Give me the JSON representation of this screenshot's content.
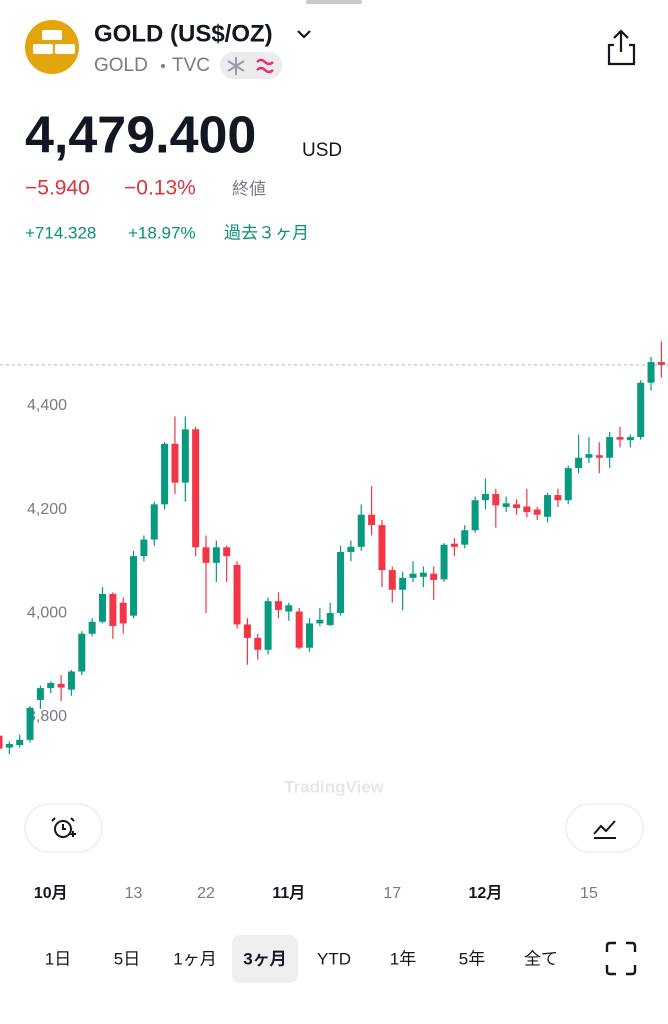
{
  "header": {
    "title": "GOLD (US$/OZ)",
    "symbol": "GOLD",
    "exchange": "TVC",
    "price": "4,479.400",
    "currency": "USD",
    "change": "−5.940",
    "change_pct": "−0.13%",
    "status": "終値",
    "period_change": "+714.328",
    "period_change_pct": "+18.97%",
    "period_label": "過去３ヶ月"
  },
  "chart_data": {
    "type": "candlestick",
    "categories": [
      null,
      null,
      null,
      null,
      null,
      "10月",
      null,
      null,
      null,
      null,
      null,
      null,
      null,
      "13",
      null,
      null,
      null,
      null,
      null,
      null,
      "22",
      null,
      null,
      null,
      null,
      null,
      null,
      null,
      "11月",
      null,
      null,
      null,
      null,
      null,
      null,
      null,
      null,
      null,
      "17",
      null,
      null,
      null,
      null,
      null,
      null,
      null,
      null,
      "12月",
      null,
      null,
      null,
      null,
      null,
      null,
      null,
      null,
      null,
      "15",
      null,
      null,
      null,
      null,
      null,
      null,
      null
    ],
    "open": [
      3763,
      3740,
      3745,
      3755,
      3832,
      3855,
      3863,
      3852,
      3887,
      3960,
      3983,
      4037,
      4020,
      3995,
      4110,
      4142,
      4210,
      4327,
      4252,
      4355,
      4127,
      4097,
      4127,
      4093,
      3978,
      3952,
      3929,
      4023,
      4003,
      4003,
      3933,
      3980,
      3977,
      4000,
      4118,
      4128,
      4190,
      4170,
      4083,
      4045,
      4068,
      4070,
      4076,
      4065,
      4134,
      4132,
      4160,
      4218,
      4230,
      4205,
      4210,
      4206,
      4200,
      4186,
      4228,
      4218,
      4280,
      4300,
      4305,
      4300,
      4340,
      4334,
      4340,
      4445,
      4485
    ],
    "high": [
      3768,
      3752,
      3765,
      3820,
      3860,
      3868,
      3880,
      3890,
      3965,
      3990,
      4050,
      4040,
      4030,
      4120,
      4150,
      4215,
      4330,
      4380,
      4380,
      4360,
      4150,
      4140,
      4130,
      4100,
      3990,
      3960,
      4030,
      4040,
      4020,
      4010,
      3990,
      4010,
      4020,
      4130,
      4140,
      4210,
      4245,
      4180,
      4090,
      4080,
      4100,
      4090,
      4090,
      4135,
      4145,
      4170,
      4225,
      4260,
      4240,
      4225,
      4220,
      4240,
      4205,
      4232,
      4240,
      4285,
      4345,
      4340,
      4330,
      4350,
      4360,
      4345,
      4450,
      4495,
      4525
    ],
    "low": [
      3730,
      3727,
      3740,
      3750,
      3815,
      3845,
      3830,
      3840,
      3880,
      3955,
      3980,
      3950,
      3960,
      3990,
      4100,
      4130,
      4200,
      4230,
      4215,
      4110,
      4000,
      4060,
      4060,
      3970,
      3900,
      3910,
      3920,
      3990,
      3985,
      3930,
      3925,
      3975,
      3975,
      3995,
      4100,
      4120,
      4150,
      4050,
      4020,
      4005,
      4060,
      4050,
      4025,
      4060,
      4110,
      4125,
      4155,
      4200,
      4165,
      4195,
      4190,
      4185,
      4180,
      4175,
      4205,
      4210,
      4270,
      4290,
      4270,
      4280,
      4320,
      4320,
      4335,
      4430,
      4455
    ],
    "close": [
      3738,
      3747,
      3755,
      3817,
      3855,
      3865,
      3856,
      3887,
      3960,
      3983,
      4037,
      3975,
      3980,
      4110,
      4142,
      4210,
      4327,
      4252,
      4355,
      4127,
      4097,
      4127,
      4110,
      3978,
      3952,
      3929,
      4023,
      4006,
      4015,
      3933,
      3980,
      3987,
      4000,
      4118,
      4128,
      4190,
      4170,
      4083,
      4045,
      4068,
      4076,
      4078,
      4064,
      4132,
      4128,
      4160,
      4218,
      4230,
      4208,
      4212,
      4203,
      4195,
      4190,
      4228,
      4218,
      4280,
      4300,
      4307,
      4300,
      4340,
      4335,
      4340,
      4445,
      4485,
      4479.4
    ],
    "up_color": "#089981",
    "down_color": "#f23645",
    "ylim": [
      3717,
      4527
    ],
    "yticks": [
      {
        "value": 3800,
        "label": "3,800"
      },
      {
        "value": 4000,
        "label": "4,000"
      },
      {
        "value": 4200,
        "label": "4,200"
      },
      {
        "value": 4400,
        "label": "4,400"
      }
    ],
    "grid": false
  },
  "watermark": "TradingView",
  "ranges": [
    "1日",
    "5日",
    "1ヶ月",
    "3ヶ月",
    "YTD",
    "1年",
    "5年",
    "全て"
  ],
  "selected_range_index": 3
}
